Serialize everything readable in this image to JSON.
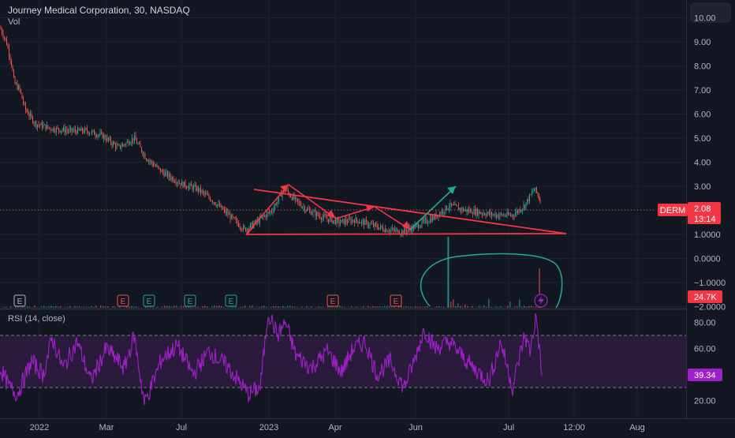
{
  "header": {
    "symbol_title": "Journey Medical Corporation, 30, NASDAQ",
    "volume_label": "Vol"
  },
  "price_pane": {
    "axis_ticks": [
      "10.00",
      "9.00",
      "8.00",
      "7.00",
      "6.00",
      "5.00",
      "4.00",
      "3.00",
      "2.00",
      "1.0000",
      "0.0000",
      "−1.0000",
      "−2.0000"
    ],
    "ticker_badge": "DERM",
    "last_price": "2.08",
    "countdown": "13:14",
    "volume_value": "24.7K"
  },
  "rsi_pane": {
    "title": "RSI (14, close)",
    "axis_ticks": [
      "80.00",
      "60.00",
      "20.00"
    ],
    "current_value": "39.34"
  },
  "time_axis": {
    "labels": [
      "2022",
      "Mar",
      "Jul",
      "2023",
      "Apr",
      "Jun",
      "Jul",
      "12:00",
      "Aug"
    ]
  },
  "events": [
    "E",
    "E",
    "E",
    "E",
    "E",
    "E",
    "E"
  ],
  "colors": {
    "background": "#131722",
    "up": "#26a69a",
    "down": "#ef5350",
    "drawing_red": "#f23645",
    "drawing_green": "#22ab94",
    "rsi_line": "#a020c8",
    "rsi_band": "#2a1b3d"
  },
  "chart_data": [
    {
      "type": "candlestick",
      "title": "Journey Medical Corporation, 30, NASDAQ",
      "x_tick_labels": [
        "2022",
        "Mar",
        "Jul",
        "2023",
        "Apr",
        "Jun",
        "Jul",
        "12:00",
        "Aug"
      ],
      "ylim": [
        -2,
        10.5
      ],
      "series": [
        {
          "name": "price",
          "keyframes": [
            [
              0,
              9.6
            ],
            [
              8,
              9.0
            ],
            [
              14,
              8.2
            ],
            [
              18,
              7.3
            ],
            [
              25,
              7.0
            ],
            [
              32,
              6.2
            ],
            [
              45,
              5.6
            ],
            [
              65,
              5.4
            ],
            [
              90,
              5.3
            ],
            [
              110,
              5.3
            ],
            [
              130,
              5.1
            ],
            [
              150,
              4.6
            ],
            [
              170,
              5.0
            ],
            [
              185,
              4.2
            ],
            [
              205,
              3.6
            ],
            [
              230,
              3.1
            ],
            [
              250,
              2.9
            ],
            [
              270,
              2.4
            ],
            [
              290,
              1.8
            ],
            [
              310,
              1.2
            ],
            [
              325,
              1.5
            ],
            [
              345,
              2.0
            ],
            [
              360,
              2.9
            ],
            [
              375,
              2.4
            ],
            [
              390,
              2.0
            ],
            [
              410,
              1.7
            ],
            [
              430,
              1.5
            ],
            [
              450,
              1.6
            ],
            [
              470,
              1.4
            ],
            [
              490,
              1.2
            ],
            [
              510,
              1.1
            ],
            [
              525,
              1.3
            ],
            [
              550,
              1.7
            ],
            [
              570,
              2.2
            ],
            [
              590,
              2.0
            ],
            [
              610,
              1.9
            ],
            [
              630,
              1.8
            ],
            [
              650,
              1.8
            ],
            [
              665,
              2.2
            ],
            [
              678,
              2.9
            ],
            [
              684,
              2.5
            ],
            [
              687,
              2.1
            ]
          ]
        }
      ],
      "drawings": [
        "triangle resistance line from ~3.0 down to ~1.05",
        "support line at ~1.05",
        "zigzag arrows (red) across the triangle",
        "breakout arrow (green) to ~3.2",
        "ellipse highlighting recent volume"
      ]
    },
    {
      "type": "line",
      "title": "RSI (14, close)",
      "bands": [
        30,
        70
      ],
      "ylim": [
        10,
        90
      ],
      "last_value": 39.34,
      "keyframes": [
        [
          0,
          45
        ],
        [
          12,
          30
        ],
        [
          22,
          25
        ],
        [
          40,
          50
        ],
        [
          55,
          40
        ],
        [
          66,
          68
        ],
        [
          80,
          45
        ],
        [
          98,
          65
        ],
        [
          115,
          35
        ],
        [
          135,
          60
        ],
        [
          158,
          45
        ],
        [
          170,
          70
        ],
        [
          183,
          18
        ],
        [
          190,
          28
        ],
        [
          205,
          52
        ],
        [
          225,
          62
        ],
        [
          245,
          40
        ],
        [
          265,
          58
        ],
        [
          290,
          45
        ],
        [
          315,
          25
        ],
        [
          330,
          30
        ],
        [
          340,
          88
        ],
        [
          352,
          70
        ],
        [
          362,
          80
        ],
        [
          375,
          55
        ],
        [
          395,
          45
        ],
        [
          415,
          58
        ],
        [
          433,
          42
        ],
        [
          448,
          60
        ],
        [
          463,
          65
        ],
        [
          478,
          40
        ],
        [
          495,
          50
        ],
        [
          512,
          30
        ],
        [
          525,
          50
        ],
        [
          538,
          75
        ],
        [
          552,
          60
        ],
        [
          570,
          65
        ],
        [
          585,
          55
        ],
        [
          600,
          45
        ],
        [
          620,
          35
        ],
        [
          635,
          65
        ],
        [
          650,
          30
        ],
        [
          665,
          70
        ],
        [
          672,
          58
        ],
        [
          680,
          85
        ],
        [
          687,
          39.34
        ]
      ]
    }
  ]
}
